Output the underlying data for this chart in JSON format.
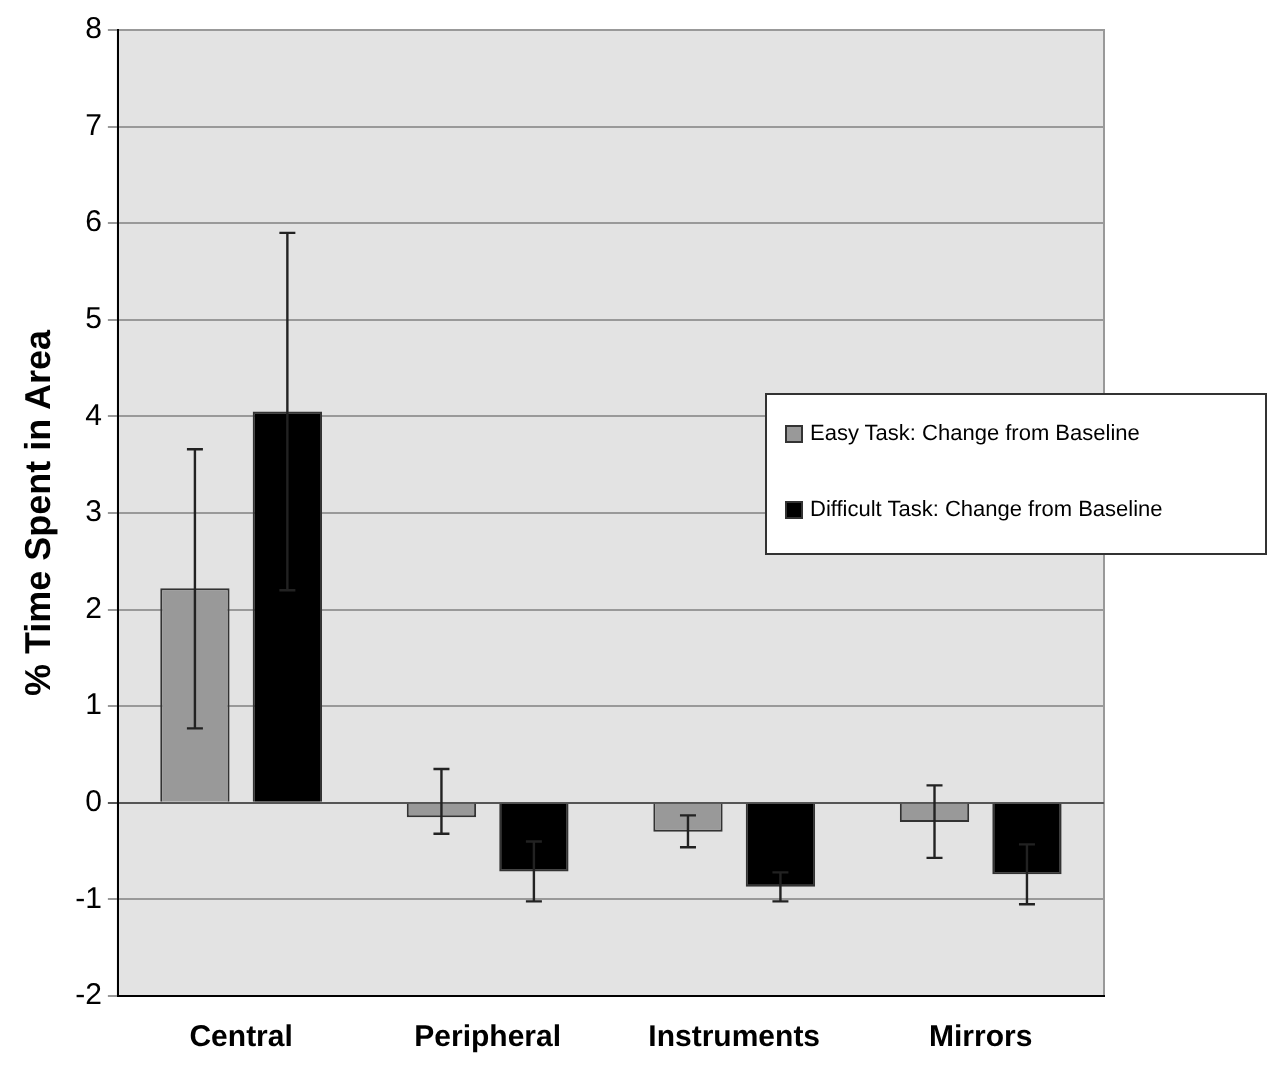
{
  "chart_data": {
    "type": "bar",
    "ylabel": "% Time Spent in Area",
    "categories": [
      "Central",
      "Peripheral",
      "Instruments",
      "Mirrors"
    ],
    "series": [
      {
        "name": "Easy Task: Change from Baseline",
        "color": "#999999",
        "values": [
          2.22,
          -0.15,
          -0.3,
          -0.2
        ],
        "errors": [
          [
            0.77,
            3.66
          ],
          [
            -0.32,
            0.35
          ],
          [
            -0.46,
            -0.13
          ],
          [
            -0.57,
            0.18
          ]
        ]
      },
      {
        "name": "Difficult Task: Change from Baseline",
        "color": "#000000",
        "values": [
          4.05,
          -0.71,
          -0.87,
          -0.74
        ],
        "errors": [
          [
            2.2,
            5.9
          ],
          [
            -1.02,
            -0.4
          ],
          [
            -1.02,
            -0.72
          ],
          [
            -1.05,
            -0.43
          ]
        ]
      }
    ],
    "ylim": [
      -2,
      8
    ],
    "yticks": [
      -2,
      -1,
      0,
      1,
      2,
      3,
      4,
      5,
      6,
      7,
      8
    ],
    "grid": "y",
    "legend": "right"
  }
}
